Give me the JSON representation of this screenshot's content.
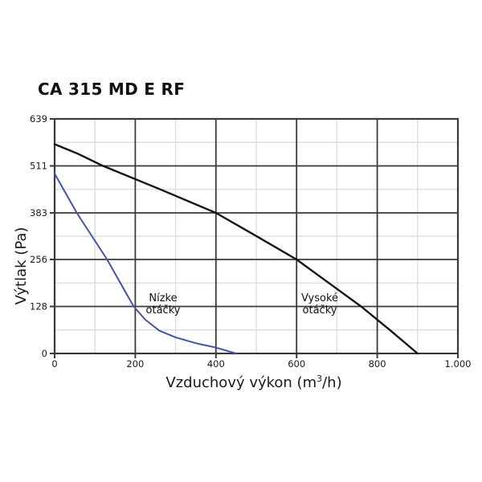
{
  "chart_data": {
    "type": "line",
    "title": "CA 315 MD E RF",
    "xlabel": "Vzduchový výkon (m³/h)",
    "xlabel_parts": {
      "prefix": "Vzduchový výkon (m",
      "sup": "3",
      "suffix": "/h)"
    },
    "ylabel": "Výtlak (Pa)",
    "xlim": [
      0,
      1000
    ],
    "ylim": [
      0,
      639
    ],
    "x_ticks": [
      {
        "value": 0,
        "label": "0"
      },
      {
        "value": 200,
        "label": "200"
      },
      {
        "value": 400,
        "label": "400"
      },
      {
        "value": 600,
        "label": "600"
      },
      {
        "value": 800,
        "label": "800"
      },
      {
        "value": 1000,
        "label": "1.000"
      }
    ],
    "y_ticks": [
      {
        "value": 0,
        "label": "0"
      },
      {
        "value": 128,
        "label": "128"
      },
      {
        "value": 256,
        "label": "256"
      },
      {
        "value": 383,
        "label": "383"
      },
      {
        "value": 511,
        "label": "511"
      },
      {
        "value": 639,
        "label": "639"
      }
    ],
    "minor_x_gridlines": [
      100,
      300,
      500,
      700,
      900
    ],
    "minor_y_gridlines": [
      64,
      192,
      319.5,
      447,
      575
    ],
    "grid": {
      "major": "dark",
      "minor": "light"
    },
    "legend_position": "none",
    "colors": {
      "background": "#ffffff",
      "major_grid": "#3a3a3a",
      "minor_grid": "#dedede",
      "axis_text": "#1a1a1a",
      "low_speed_curve": "#4153b0",
      "high_speed_curve": "#141414"
    },
    "series": [
      {
        "id": "nizke-otacky",
        "name": "Nízke otáčky",
        "color": "#4153b0",
        "stroke_width": 2,
        "points": [
          [
            0,
            490
          ],
          [
            55,
            383
          ],
          [
            130,
            256
          ],
          [
            196,
            128
          ],
          [
            225,
            92
          ],
          [
            260,
            62
          ],
          [
            300,
            44
          ],
          [
            350,
            28
          ],
          [
            400,
            16
          ],
          [
            450,
            0
          ]
        ]
      },
      {
        "id": "vysoke-otacky",
        "name": "Vysoké otáčky",
        "color": "#141414",
        "stroke_width": 2.4,
        "points": [
          [
            0,
            570
          ],
          [
            60,
            543
          ],
          [
            120,
            511
          ],
          [
            260,
            448
          ],
          [
            400,
            383
          ],
          [
            500,
            320
          ],
          [
            600,
            256
          ],
          [
            680,
            192
          ],
          [
            760,
            128
          ],
          [
            830,
            65
          ],
          [
            900,
            0
          ]
        ]
      }
    ],
    "annotations": [
      {
        "text": "Nízke otáčky",
        "anchor_x": 270,
        "anchor_y": 110
      },
      {
        "text": "Vysoké otáčky",
        "anchor_x": 657,
        "anchor_y": 110
      }
    ]
  }
}
